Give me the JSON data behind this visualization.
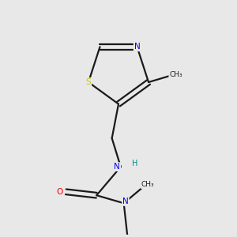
{
  "bg_color": "#e8e8e8",
  "bond_color": "#1a1a1a",
  "atom_colors": {
    "N": "#0000ee",
    "O": "#ee0000",
    "S": "#cccc00",
    "C": "#1a1a1a",
    "H": "#008888"
  },
  "lw": 1.6
}
